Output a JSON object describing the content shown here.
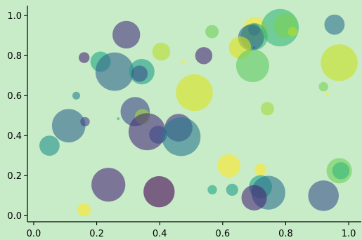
{
  "chart_data": {
    "type": "scatter",
    "title": "",
    "xlabel": "",
    "ylabel": "",
    "xlim": [
      -0.02,
      1.04
    ],
    "ylim": [
      -0.03,
      1.05
    ],
    "xticks": [
      "0.0",
      "0.2",
      "0.4",
      "0.6",
      "0.8",
      "1.0"
    ],
    "yticks": [
      "0.0",
      "0.2",
      "0.4",
      "0.6",
      "0.8",
      "1.0"
    ],
    "grid": false,
    "spines": [
      "left",
      "bottom"
    ],
    "background_color": "#c8ecc8",
    "colormap": "viridis",
    "alpha": 0.6,
    "points": [
      {
        "x": 0.294,
        "y": 0.905,
        "size": 260,
        "color": "#46327e"
      },
      {
        "x": 0.405,
        "y": 0.82,
        "size": 110,
        "color": "#b5de2b"
      },
      {
        "x": 0.16,
        "y": 0.79,
        "size": 40,
        "color": "#482878"
      },
      {
        "x": 0.212,
        "y": 0.77,
        "size": 140,
        "color": "#22a884"
      },
      {
        "x": 0.257,
        "y": 0.72,
        "size": 500,
        "color": "#31688e"
      },
      {
        "x": 0.343,
        "y": 0.72,
        "size": 220,
        "color": "#1f9e89"
      },
      {
        "x": 0.336,
        "y": 0.71,
        "size": 90,
        "color": "#3b528b"
      },
      {
        "x": 0.135,
        "y": 0.6,
        "size": 20,
        "color": "#26828e"
      },
      {
        "x": 0.474,
        "y": 0.77,
        "size": 4,
        "color": "#fde725"
      },
      {
        "x": 0.54,
        "y": 0.8,
        "size": 100,
        "color": "#482878"
      },
      {
        "x": 0.566,
        "y": 0.92,
        "size": 60,
        "color": "#6ece58"
      },
      {
        "x": 0.51,
        "y": 0.615,
        "size": 460,
        "color": "#d8e219"
      },
      {
        "x": 0.703,
        "y": 0.93,
        "size": 210,
        "color": "#fde725"
      },
      {
        "x": 0.7,
        "y": 0.93,
        "size": 50,
        "color": "#3e4989"
      },
      {
        "x": 0.7,
        "y": 0.895,
        "size": 250,
        "color": "#35b779"
      },
      {
        "x": 0.69,
        "y": 0.89,
        "size": 230,
        "color": "#31688e"
      },
      {
        "x": 0.7,
        "y": 0.84,
        "size": 2,
        "color": "#3b528b"
      },
      {
        "x": 0.655,
        "y": 0.84,
        "size": 170,
        "color": "#dde318"
      },
      {
        "x": 0.695,
        "y": 0.75,
        "size": 370,
        "color": "#5ec962"
      },
      {
        "x": 0.782,
        "y": 0.94,
        "size": 480,
        "color": "#35b779"
      },
      {
        "x": 0.8,
        "y": 0.95,
        "size": 200,
        "color": "#7ad151"
      },
      {
        "x": 0.822,
        "y": 0.92,
        "size": 30,
        "color": "#b5de2b"
      },
      {
        "x": 0.955,
        "y": 0.955,
        "size": 140,
        "color": "#2c728e"
      },
      {
        "x": 0.97,
        "y": 0.765,
        "size": 460,
        "color": "#c8e020"
      },
      {
        "x": 0.92,
        "y": 0.645,
        "size": 30,
        "color": "#7ad151"
      },
      {
        "x": 0.933,
        "y": 0.605,
        "size": 4,
        "color": "#fde725"
      },
      {
        "x": 0.742,
        "y": 0.535,
        "size": 60,
        "color": "#a0da39"
      },
      {
        "x": 0.111,
        "y": 0.45,
        "size": 380,
        "color": "#31688e"
      },
      {
        "x": 0.163,
        "y": 0.47,
        "size": 30,
        "color": "#414487"
      },
      {
        "x": 0.05,
        "y": 0.35,
        "size": 140,
        "color": "#21918c"
      },
      {
        "x": 0.268,
        "y": 0.485,
        "size": 3,
        "color": "#35b779"
      },
      {
        "x": 0.322,
        "y": 0.52,
        "size": 290,
        "color": "#3e4989"
      },
      {
        "x": 0.345,
        "y": 0.495,
        "size": 80,
        "color": "#a0da39"
      },
      {
        "x": 0.36,
        "y": 0.42,
        "size": 470,
        "color": "#472d7b"
      },
      {
        "x": 0.395,
        "y": 0.405,
        "size": 110,
        "color": "#3e4989"
      },
      {
        "x": 0.46,
        "y": 0.44,
        "size": 260,
        "color": "#46327e"
      },
      {
        "x": 0.468,
        "y": 0.395,
        "size": 510,
        "color": "#2a788e"
      },
      {
        "x": 0.62,
        "y": 0.25,
        "size": 180,
        "color": "#fde725"
      },
      {
        "x": 0.72,
        "y": 0.23,
        "size": 50,
        "color": "#fde725"
      },
      {
        "x": 0.97,
        "y": 0.225,
        "size": 220,
        "color": "#6ece58"
      },
      {
        "x": 0.975,
        "y": 0.225,
        "size": 100,
        "color": "#35b779"
      },
      {
        "x": 0.237,
        "y": 0.155,
        "size": 390,
        "color": "#482878"
      },
      {
        "x": 0.398,
        "y": 0.12,
        "size": 330,
        "color": "#440154"
      },
      {
        "x": 0.567,
        "y": 0.13,
        "size": 30,
        "color": "#22a884"
      },
      {
        "x": 0.63,
        "y": 0.13,
        "size": 50,
        "color": "#1f9e89"
      },
      {
        "x": 0.72,
        "y": 0.145,
        "size": 180,
        "color": "#1fa187"
      },
      {
        "x": 0.745,
        "y": 0.115,
        "size": 390,
        "color": "#2c728e"
      },
      {
        "x": 0.7,
        "y": 0.09,
        "size": 220,
        "color": "#482878"
      },
      {
        "x": 0.92,
        "y": 0.1,
        "size": 320,
        "color": "#3b528b"
      },
      {
        "x": 0.16,
        "y": 0.03,
        "size": 60,
        "color": "#fde725"
      }
    ]
  }
}
